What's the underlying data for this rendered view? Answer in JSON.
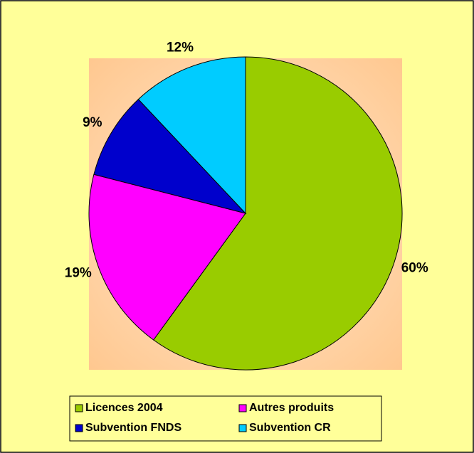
{
  "chart_data": {
    "type": "pie",
    "categories": [
      "Licences 2004",
      "Autres produits",
      "Subvention FNDS",
      "Subvention CR"
    ],
    "values": [
      60,
      19,
      9,
      12
    ],
    "value_labels": [
      "60%",
      "19%",
      "9%",
      "12%"
    ],
    "colors": [
      "#99cc00",
      "#ff00ff",
      "#0000cc",
      "#00ccff"
    ],
    "legend": "bottom"
  }
}
